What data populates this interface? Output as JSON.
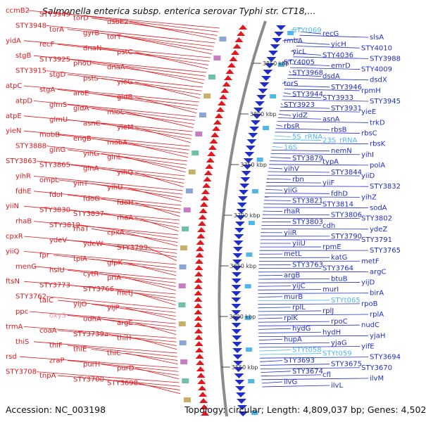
{
  "title": "Salmonella enterica subsp. enterica serovar Typhi str. CT18,...",
  "footer": {
    "accession": "Accession: NC_003198",
    "summary": "Topology: circular; Length: 4,809,037 bp; Genes: 4,502"
  },
  "colors": {
    "forward_strand": "#e0191e",
    "reverse_strand": "#1f2ec8",
    "rna": "#4fb8e8",
    "pseudo": "#f08ab0",
    "backbone": "#8c8c8c"
  },
  "kbp_marks": [
    "3850 kbp",
    "3800 kbp",
    "3750 kbp",
    "3700 kbp",
    "3650 kbp",
    "3600 kbp",
    "3550 kbp"
  ],
  "left_genes": [
    "ccmB2",
    "STY3949",
    "torD",
    "dsbE2",
    "STY3948",
    "torA",
    "gyrB",
    "torT",
    "yidA",
    "recF",
    "dnaN",
    "pstC",
    "stgB",
    "STY3925",
    "phoU",
    "dnaA",
    "STY3915",
    "stgD",
    "pstS",
    "yieG",
    "atpC",
    "stgA",
    "aroE",
    "gidB",
    "atpD",
    "glmS",
    "gidA",
    "mioC",
    "atpE",
    "glmU",
    "asnC",
    "yieM",
    "yieN",
    "mobB",
    "engB",
    "mobA",
    "STY3888",
    "glnG",
    "yihG",
    "glnL",
    "STY3863",
    "STY3865",
    "glnA",
    "yihQ",
    "yihR",
    "ompL",
    "yihT",
    "yihU",
    "fdhE",
    "fdoI",
    "fdoG",
    "fdoH",
    "yiiN",
    "STY3830",
    "STY3837",
    "rhaA",
    "rhaB",
    "STY3819",
    "rhaT",
    "cpxA",
    "cpxR",
    "ydeV",
    "ydeW",
    "STY3799",
    "yiiQ",
    "fpr",
    "tpiA",
    "glpK",
    "menG",
    "hslU",
    "cytR",
    "priA",
    "ftsN",
    "STY3773",
    "STY3766",
    "metJ",
    "STY3762",
    "talC",
    "yijO",
    "yijP",
    "ppc",
    "oxyS",
    "udhA",
    "argE",
    "trmA",
    "coaA",
    "STY3739a",
    "thiH",
    "thiS",
    "thiF",
    "thiE",
    "thiC",
    "rsd",
    "zraP",
    "purH",
    "purD",
    "STY3708",
    "tnpA",
    "STY3700",
    "STY3698"
  ],
  "right_genes": [
    "STYt069",
    "recG",
    "slsA",
    "rmbA",
    "yicH",
    "STY4010",
    "yicL",
    "STY4036",
    "STY3988",
    "STY4005",
    "emrD",
    "STY4009",
    "STY3968",
    "dsdA",
    "dsdX",
    "torS",
    "STY3946",
    "rpmH",
    "STY3944",
    "STY3933",
    "STY3945",
    "STY3923",
    "STY3931",
    "yieE",
    "yidZ",
    "asnA",
    "trkD",
    "rbsR",
    "rbsB",
    "rbsC",
    "5S_rRNA",
    "23S_rRNA",
    "rbsK",
    "16S",
    "nemN",
    "yihI",
    "STY3879",
    "typA",
    "polA",
    "yihV",
    "STY3844",
    "yiiD",
    "rbn",
    "yiiF",
    "STY3832",
    "yiiG",
    "fdhD",
    "yihZ",
    "STY3821",
    "STY3814",
    "sodA",
    "rhaR",
    "STY3806",
    "STY3802",
    "STY3803",
    "cdh",
    "ydeZ",
    "yiiR",
    "STY3790",
    "STY3791",
    "yiiU",
    "rpmE",
    "STY3765",
    "metL",
    "katG",
    "metF",
    "STY3763",
    "STY3764",
    "argC",
    "argB",
    "btuB",
    "yijD",
    "yijC",
    "murI",
    "birA",
    "murB",
    "STYt065",
    "rpoB",
    "rplL",
    "rplJ",
    "rplA",
    "rplK",
    "rpoC",
    "nudC",
    "hydG",
    "hydH",
    "yjaH",
    "hupA",
    "yjaG",
    "yifE",
    "STYt058",
    "STYt059",
    "STY3694",
    "STY3693",
    "STY3675",
    "STY3670",
    "STY3674",
    "cfl",
    "ilvM",
    "ilvG",
    "ilvL"
  ]
}
